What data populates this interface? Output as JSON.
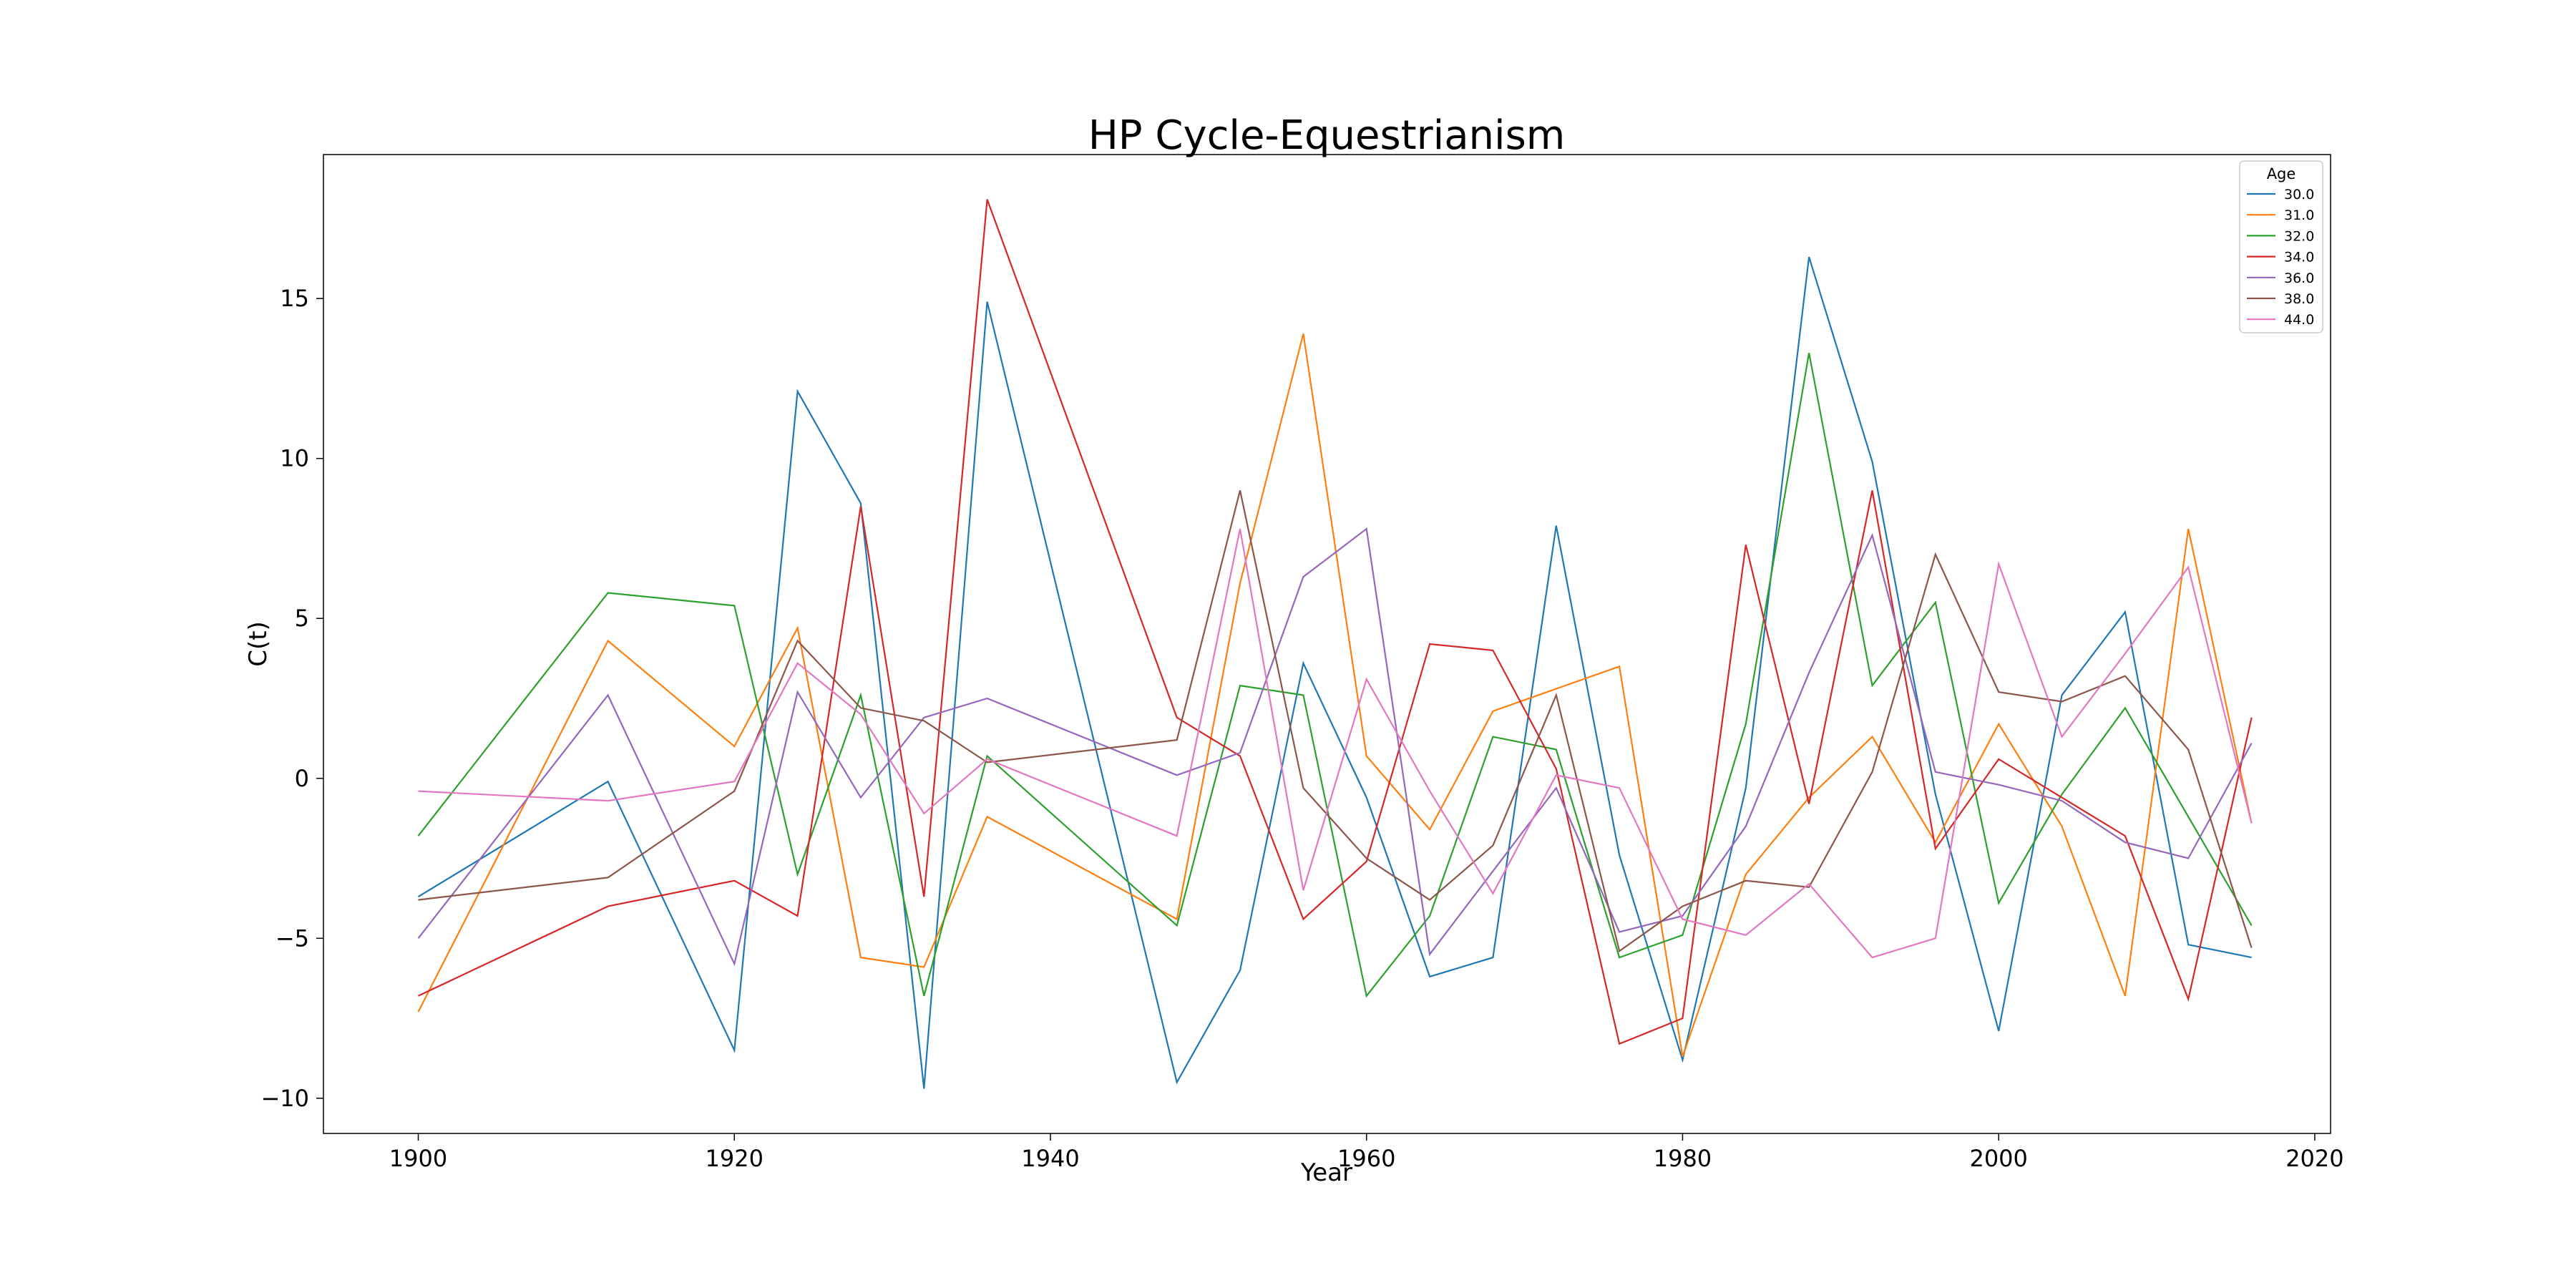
{
  "chart_data": {
    "type": "line",
    "title": "HP Cycle-Equestrianism",
    "xlabel": "Year",
    "ylabel": "C(t)",
    "xlim": [
      1894,
      2021
    ],
    "ylim": [
      -11.1,
      19.5
    ],
    "xticks": [
      1900,
      1920,
      1940,
      1960,
      1980,
      2000,
      2020
    ],
    "yticks": [
      -10,
      -5,
      0,
      5,
      10,
      15
    ],
    "grid": false,
    "legend": {
      "title": "Age",
      "placement": "top-right"
    },
    "series": [
      {
        "name": "30.0",
        "color": "#1f77b4",
        "x": [
          1900,
          1912,
          1920,
          1924,
          1928,
          1932,
          1936,
          1948,
          1952,
          1956,
          1960,
          1964,
          1968,
          1972,
          1976,
          1980,
          1984,
          1988,
          1992,
          1996,
          2000,
          2004,
          2008,
          2012,
          2016
        ],
        "y": [
          -3.7,
          -0.1,
          -8.5,
          12.1,
          8.6,
          -9.7,
          14.9,
          -9.5,
          -6.0,
          3.6,
          -0.6,
          -6.2,
          -5.6,
          7.9,
          -2.4,
          -8.8,
          -0.3,
          16.3,
          9.9,
          -0.5,
          -7.9,
          2.6,
          5.2,
          -5.2,
          -5.6
        ]
      },
      {
        "name": "31.0",
        "color": "#ff7f0e",
        "x": [
          1900,
          1912,
          1920,
          1924,
          1928,
          1932,
          1936,
          1948,
          1952,
          1956,
          1960,
          1964,
          1968,
          1972,
          1976,
          1980,
          1984,
          1988,
          1992,
          1996,
          2000,
          2004,
          2008,
          2012,
          2016
        ],
        "y": [
          -7.3,
          4.3,
          1.0,
          4.7,
          -5.6,
          -5.9,
          -1.2,
          -4.4,
          6.1,
          13.9,
          0.7,
          -1.6,
          2.1,
          2.8,
          3.5,
          -8.7,
          -3.0,
          -0.6,
          1.3,
          -2.0,
          1.7,
          -1.5,
          -6.8,
          7.8,
          -1.4
        ]
      },
      {
        "name": "32.0",
        "color": "#2ca02c",
        "x": [
          1900,
          1912,
          1920,
          1924,
          1928,
          1932,
          1936,
          1948,
          1952,
          1956,
          1960,
          1964,
          1968,
          1972,
          1976,
          1980,
          1984,
          1988,
          1992,
          1996,
          2000,
          2004,
          2008,
          2012,
          2016
        ],
        "y": [
          -1.8,
          5.8,
          5.4,
          -3.0,
          2.6,
          -6.8,
          0.7,
          -4.6,
          2.9,
          2.6,
          -6.8,
          -4.3,
          1.3,
          0.9,
          -5.6,
          -4.9,
          1.7,
          13.3,
          2.9,
          5.5,
          -3.9,
          -0.5,
          2.2,
          -1.2,
          -4.6
        ]
      },
      {
        "name": "34.0",
        "color": "#d62728",
        "x": [
          1900,
          1912,
          1920,
          1924,
          1928,
          1932,
          1936,
          1948,
          1952,
          1956,
          1960,
          1964,
          1968,
          1972,
          1976,
          1980,
          1984,
          1988,
          1992,
          1996,
          2000,
          2004,
          2008,
          2012,
          2016
        ],
        "y": [
          -6.8,
          -4.0,
          -3.2,
          -4.3,
          8.5,
          -3.7,
          18.1,
          1.9,
          0.7,
          -4.4,
          -2.6,
          4.2,
          4.0,
          0.3,
          -8.3,
          -7.5,
          7.3,
          -0.8,
          9.0,
          -2.2,
          0.6,
          -0.6,
          -1.8,
          -6.9,
          1.9
        ]
      },
      {
        "name": "36.0",
        "color": "#9467bd",
        "x": [
          1900,
          1912,
          1920,
          1924,
          1928,
          1932,
          1936,
          1948,
          1952,
          1956,
          1960,
          1964,
          1968,
          1972,
          1976,
          1980,
          1984,
          1988,
          1992,
          1996,
          2000,
          2004,
          2008,
          2012,
          2016
        ],
        "y": [
          -5.0,
          2.6,
          -5.8,
          2.7,
          -0.6,
          1.9,
          2.5,
          0.1,
          0.8,
          6.3,
          7.8,
          -5.5,
          -2.9,
          -0.3,
          -4.8,
          -4.3,
          -1.5,
          3.3,
          7.6,
          0.2,
          -0.2,
          -0.7,
          -2.0,
          -2.5,
          1.1
        ]
      },
      {
        "name": "38.0",
        "color": "#8c564b",
        "x": [
          1900,
          1912,
          1920,
          1924,
          1928,
          1932,
          1936,
          1948,
          1952,
          1956,
          1960,
          1964,
          1968,
          1972,
          1976,
          1980,
          1984,
          1988,
          1992,
          1996,
          2000,
          2004,
          2008,
          2012,
          2016
        ],
        "y": [
          -3.8,
          -3.1,
          -0.4,
          4.3,
          2.2,
          1.8,
          0.5,
          1.2,
          9.0,
          -0.3,
          -2.5,
          -3.8,
          -2.1,
          2.6,
          -5.4,
          -4.0,
          -3.2,
          -3.4,
          0.2,
          7.0,
          2.7,
          2.4,
          3.2,
          0.9,
          -5.3
        ]
      },
      {
        "name": "44.0",
        "color": "#e377c2",
        "x": [
          1900,
          1912,
          1920,
          1924,
          1928,
          1932,
          1936,
          1948,
          1952,
          1956,
          1960,
          1964,
          1968,
          1972,
          1976,
          1980,
          1984,
          1988,
          1992,
          1996,
          2000,
          2004,
          2008,
          2012,
          2016
        ],
        "y": [
          -0.4,
          -0.7,
          -0.1,
          3.6,
          2.0,
          -1.1,
          0.6,
          -1.8,
          7.8,
          -3.5,
          3.1,
          -0.4,
          -3.6,
          0.1,
          -0.3,
          -4.4,
          -4.9,
          -3.3,
          -5.6,
          -5.0,
          6.7,
          1.3,
          3.9,
          6.6,
          -1.4
        ]
      }
    ]
  }
}
